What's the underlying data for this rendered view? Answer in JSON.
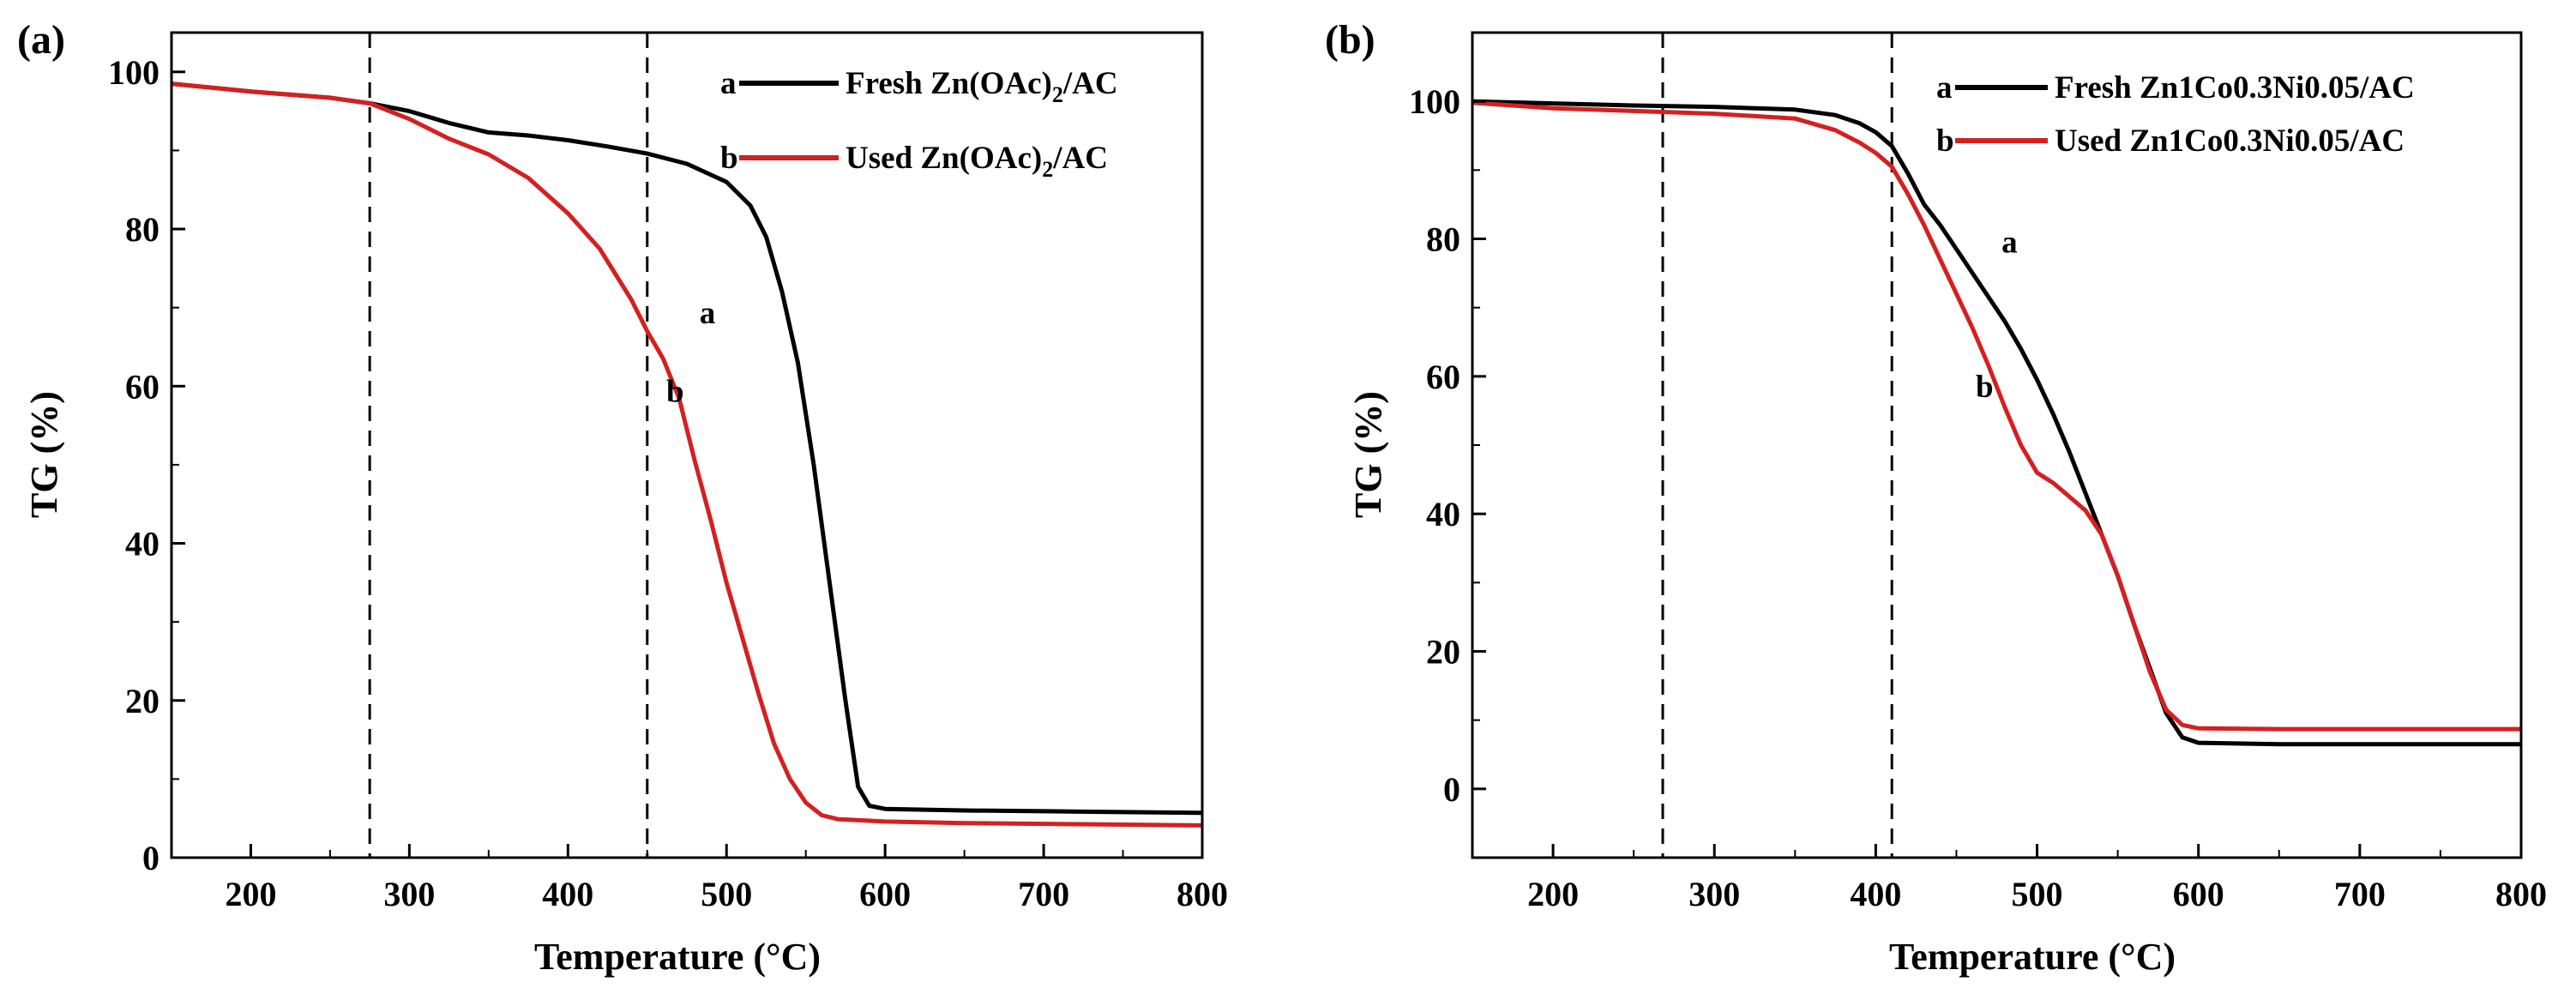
{
  "chart_data": [
    {
      "type": "line",
      "panel_label": "(a)",
      "xlabel": "Temperature (°C)",
      "ylabel": "TG (%)",
      "xlim": [
        150,
        800
      ],
      "ylim": [
        0,
        105
      ],
      "xticks": [
        200,
        300,
        400,
        500,
        600,
        700,
        800
      ],
      "yticks": [
        0,
        20,
        40,
        60,
        80,
        100
      ],
      "vlines": [
        275,
        450
      ],
      "legend_position": "top-right",
      "colors": {
        "a": "#000000",
        "b": "#d42020"
      },
      "series": [
        {
          "key": "a",
          "letter": "a",
          "name_main": "Fresh Zn(OAc)",
          "name_sub": "2",
          "name_tail": "/AC",
          "curve_label": "a",
          "curve_label_at": [
            483,
            68
          ],
          "points": [
            [
              150,
              98.5
            ],
            [
              200,
              97.5
            ],
            [
              250,
              96.7
            ],
            [
              275,
              96.0
            ],
            [
              300,
              95.0
            ],
            [
              325,
              93.5
            ],
            [
              350,
              92.3
            ],
            [
              375,
              91.9
            ],
            [
              400,
              91.3
            ],
            [
              425,
              90.5
            ],
            [
              450,
              89.6
            ],
            [
              475,
              88.3
            ],
            [
              500,
              86.0
            ],
            [
              515,
              83.0
            ],
            [
              525,
              79.0
            ],
            [
              535,
              72.0
            ],
            [
              545,
              63.0
            ],
            [
              555,
              50.0
            ],
            [
              565,
              35.0
            ],
            [
              575,
              20.0
            ],
            [
              583,
              9.0
            ],
            [
              590,
              6.6
            ],
            [
              600,
              6.2
            ],
            [
              650,
              6.0
            ],
            [
              700,
              5.9
            ],
            [
              750,
              5.8
            ],
            [
              800,
              5.7
            ]
          ]
        },
        {
          "key": "b",
          "letter": "b",
          "name_main": "Used Zn(OAc)",
          "name_sub": "2",
          "name_tail": "/AC",
          "curve_label": "b",
          "curve_label_at": [
            462,
            58
          ],
          "points": [
            [
              150,
              98.5
            ],
            [
              200,
              97.5
            ],
            [
              250,
              96.7
            ],
            [
              275,
              96.0
            ],
            [
              300,
              94.0
            ],
            [
              325,
              91.5
            ],
            [
              350,
              89.5
            ],
            [
              375,
              86.5
            ],
            [
              400,
              82.0
            ],
            [
              420,
              77.5
            ],
            [
              440,
              71.0
            ],
            [
              450,
              67.0
            ],
            [
              460,
              63.5
            ],
            [
              470,
              58.5
            ],
            [
              480,
              50.5
            ],
            [
              490,
              43.0
            ],
            [
              500,
              35.0
            ],
            [
              510,
              28.0
            ],
            [
              520,
              21.0
            ],
            [
              530,
              14.5
            ],
            [
              540,
              10.0
            ],
            [
              550,
              7.0
            ],
            [
              560,
              5.4
            ],
            [
              570,
              4.9
            ],
            [
              600,
              4.6
            ],
            [
              650,
              4.4
            ],
            [
              700,
              4.3
            ],
            [
              750,
              4.2
            ],
            [
              800,
              4.1
            ]
          ]
        }
      ]
    },
    {
      "type": "line",
      "panel_label": "(b)",
      "xlabel": "Temperature (°C)",
      "ylabel": "TG (%)",
      "xlim": [
        150,
        800
      ],
      "ylim": [
        -10,
        110
      ],
      "xticks": [
        200,
        300,
        400,
        500,
        600,
        700,
        800
      ],
      "yticks": [
        0,
        20,
        40,
        60,
        80,
        100
      ],
      "vlines": [
        268,
        410
      ],
      "legend_position": "top-right",
      "colors": {
        "a": "#000000",
        "b": "#d42020"
      },
      "series": [
        {
          "key": "a",
          "letter": "a",
          "name_main": "Fresh Zn1Co0.3Ni0.05/AC",
          "name_sub": "",
          "name_tail": "",
          "curve_label": "a",
          "curve_label_at": [
            478,
            78
          ],
          "points": [
            [
              150,
              100
            ],
            [
              200,
              99.7
            ],
            [
              250,
              99.4
            ],
            [
              300,
              99.2
            ],
            [
              350,
              98.8
            ],
            [
              375,
              98.0
            ],
            [
              390,
              96.8
            ],
            [
              400,
              95.5
            ],
            [
              410,
              93.5
            ],
            [
              420,
              89.5
            ],
            [
              430,
              85.0
            ],
            [
              440,
              82.0
            ],
            [
              450,
              78.5
            ],
            [
              460,
              75.0
            ],
            [
              470,
              71.5
            ],
            [
              480,
              68.0
            ],
            [
              490,
              64.0
            ],
            [
              500,
              59.5
            ],
            [
              510,
              54.5
            ],
            [
              520,
              49.0
            ],
            [
              530,
              43.0
            ],
            [
              540,
              37.0
            ],
            [
              550,
              31.0
            ],
            [
              560,
              24.0
            ],
            [
              570,
              17.5
            ],
            [
              580,
              11.0
            ],
            [
              590,
              7.5
            ],
            [
              600,
              6.7
            ],
            [
              650,
              6.5
            ],
            [
              700,
              6.5
            ],
            [
              750,
              6.5
            ],
            [
              800,
              6.5
            ]
          ]
        },
        {
          "key": "b",
          "letter": "b",
          "name_main": "Used Zn1Co0.3Ni0.05/AC",
          "name_sub": "",
          "name_tail": "",
          "curve_label": "b",
          "curve_label_at": [
            462,
            57
          ],
          "points": [
            [
              150,
              99.8
            ],
            [
              200,
              99.0
            ],
            [
              250,
              98.6
            ],
            [
              300,
              98.2
            ],
            [
              350,
              97.5
            ],
            [
              375,
              95.8
            ],
            [
              390,
              94.0
            ],
            [
              400,
              92.5
            ],
            [
              410,
              90.5
            ],
            [
              420,
              86.5
            ],
            [
              430,
              82.0
            ],
            [
              440,
              77.0
            ],
            [
              450,
              72.0
            ],
            [
              460,
              67.0
            ],
            [
              470,
              61.5
            ],
            [
              480,
              55.5
            ],
            [
              490,
              50.0
            ],
            [
              500,
              46.0
            ],
            [
              510,
              44.5
            ],
            [
              520,
              42.5
            ],
            [
              530,
              40.5
            ],
            [
              540,
              37.0
            ],
            [
              550,
              31.0
            ],
            [
              560,
              24.0
            ],
            [
              570,
              17.0
            ],
            [
              580,
              11.5
            ],
            [
              590,
              9.3
            ],
            [
              600,
              8.8
            ],
            [
              650,
              8.7
            ],
            [
              700,
              8.7
            ],
            [
              750,
              8.7
            ],
            [
              800,
              8.7
            ]
          ]
        }
      ]
    }
  ]
}
